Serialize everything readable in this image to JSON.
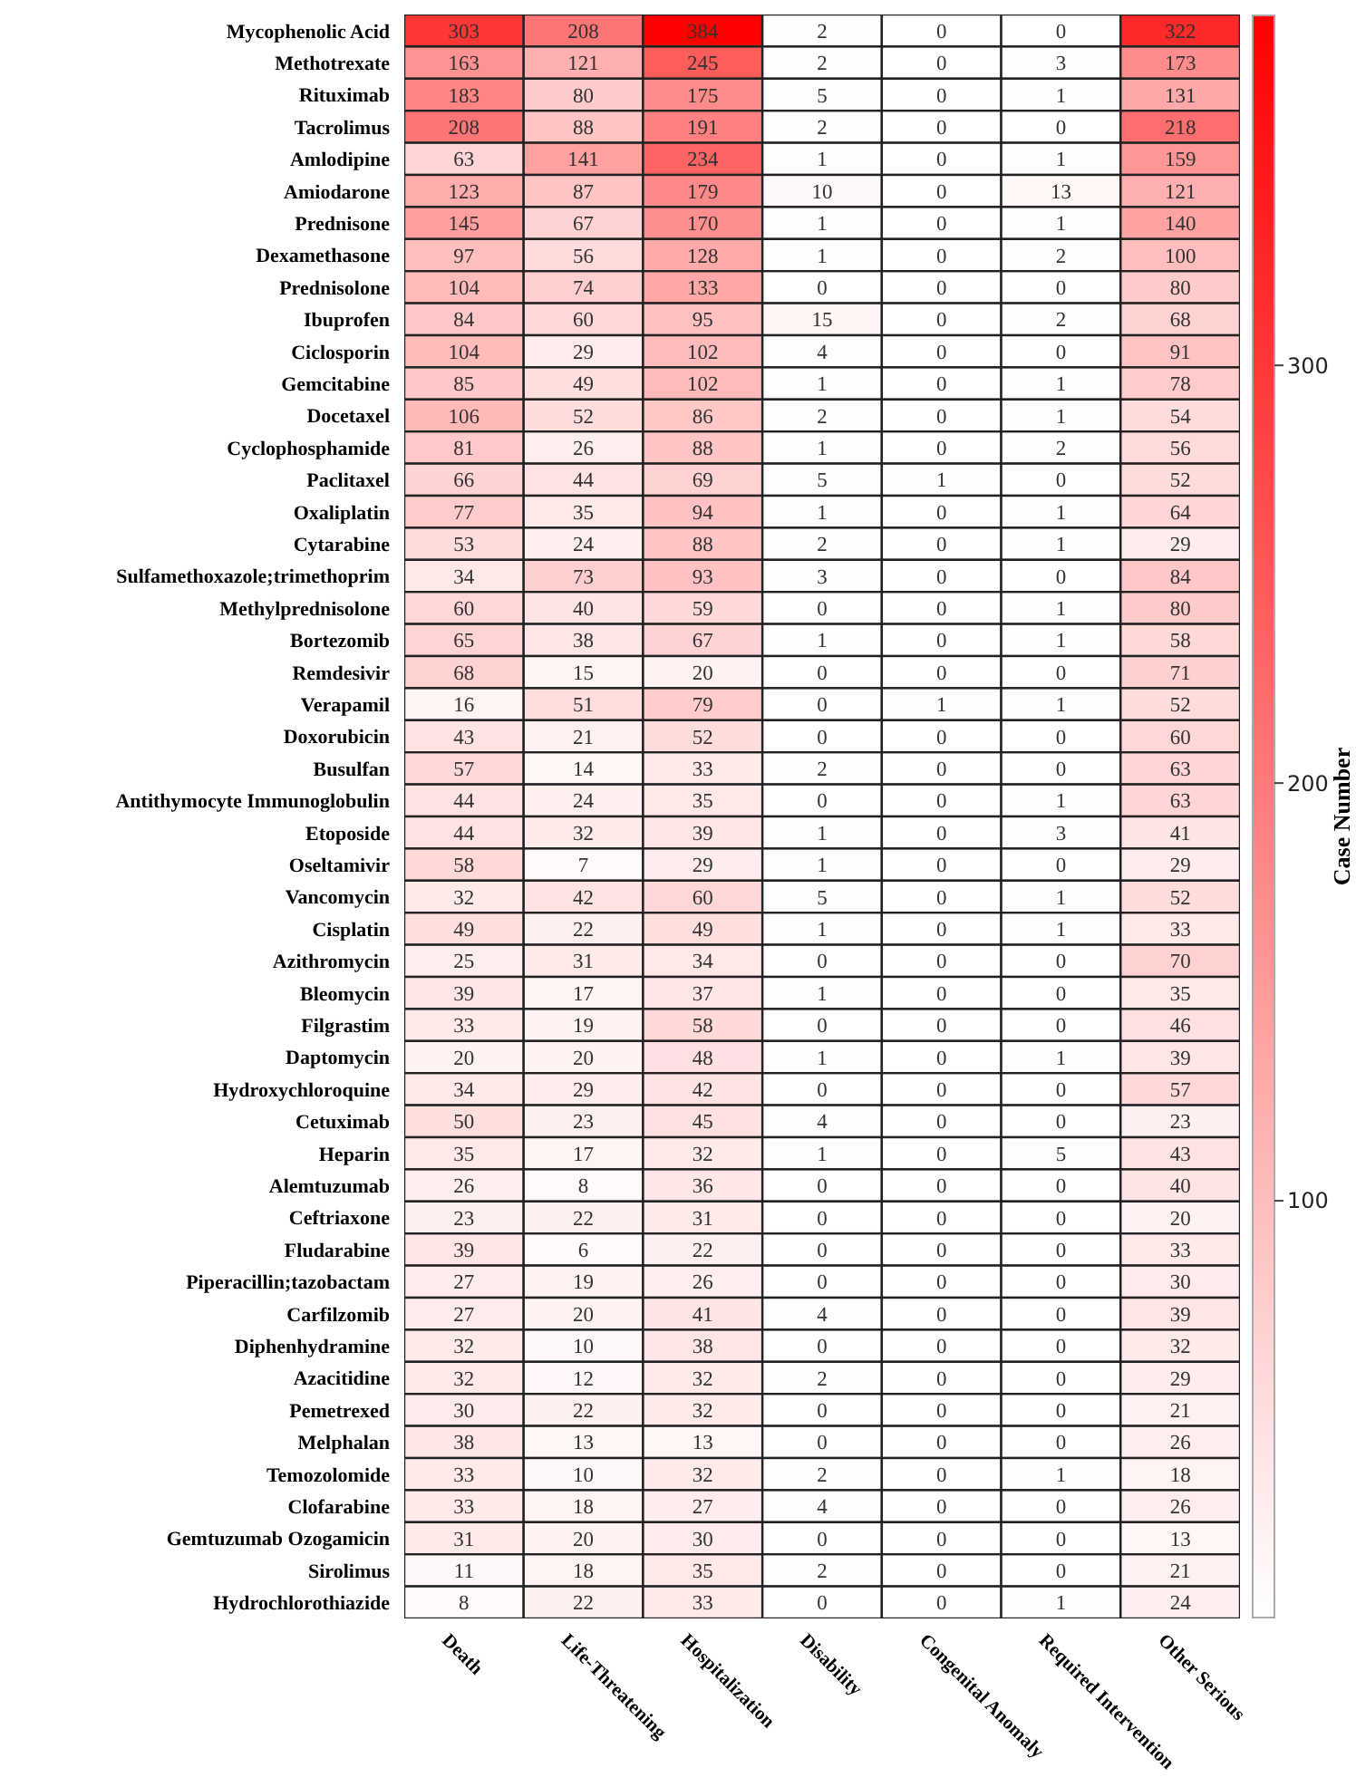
{
  "chart_data": {
    "type": "heatmap",
    "clabel": "Case Number",
    "clim": [
      0,
      384
    ],
    "cticks": [
      100,
      200,
      300
    ],
    "data_labels": true,
    "categories": [
      "Death",
      "Life-Threatening",
      "Hospitalization",
      "Disability",
      "Congenital Anomaly",
      "Required Intervention",
      "Other Serious"
    ],
    "y_categories": [
      "Mycophenolic Acid",
      "Methotrexate",
      "Rituximab",
      "Tacrolimus",
      "Amlodipine",
      "Amiodarone",
      "Prednisone",
      "Dexamethasone",
      "Prednisolone",
      "Ibuprofen",
      "Ciclosporin",
      "Gemcitabine",
      "Docetaxel",
      "Cyclophosphamide",
      "Paclitaxel",
      "Oxaliplatin",
      "Cytarabine",
      "Sulfamethoxazole;trimethoprim",
      "Methylprednisolone",
      "Bortezomib",
      "Remdesivir",
      "Verapamil",
      "Doxorubicin",
      "Busulfan",
      "Antithymocyte Immunoglobulin",
      "Etoposide",
      "Oseltamivir",
      "Vancomycin",
      "Cisplatin",
      "Azithromycin",
      "Bleomycin",
      "Filgrastim",
      "Daptomycin",
      "Hydroxychloroquine",
      "Cetuximab",
      "Heparin",
      "Alemtuzumab",
      "Ceftriaxone",
      "Fludarabine",
      "Piperacillin;tazobactam",
      "Carfilzomib",
      "Diphenhydramine",
      "Azacitidine",
      "Pemetrexed",
      "Melphalan",
      "Temozolomide",
      "Clofarabine",
      "Gemtuzumab Ozogamicin",
      "Sirolimus",
      "Hydrochlorothiazide"
    ],
    "cells": [
      [
        303,
        208,
        384,
        2,
        0,
        0,
        322
      ],
      [
        163,
        121,
        245,
        2,
        0,
        3,
        173
      ],
      [
        183,
        80,
        175,
        5,
        0,
        1,
        131
      ],
      [
        208,
        88,
        191,
        2,
        0,
        0,
        218
      ],
      [
        63,
        141,
        234,
        1,
        0,
        1,
        159
      ],
      [
        123,
        87,
        179,
        10,
        0,
        13,
        121
      ],
      [
        145,
        67,
        170,
        1,
        0,
        1,
        140
      ],
      [
        97,
        56,
        128,
        1,
        0,
        2,
        100
      ],
      [
        104,
        74,
        133,
        0,
        0,
        0,
        80
      ],
      [
        84,
        60,
        95,
        15,
        0,
        2,
        68
      ],
      [
        104,
        29,
        102,
        4,
        0,
        0,
        91
      ],
      [
        85,
        49,
        102,
        1,
        0,
        1,
        78
      ],
      [
        106,
        52,
        86,
        2,
        0,
        1,
        54
      ],
      [
        81,
        26,
        88,
        1,
        0,
        2,
        56
      ],
      [
        66,
        44,
        69,
        5,
        1,
        0,
        52
      ],
      [
        77,
        35,
        94,
        1,
        0,
        1,
        64
      ],
      [
        53,
        24,
        88,
        2,
        0,
        1,
        29
      ],
      [
        34,
        73,
        93,
        3,
        0,
        0,
        84
      ],
      [
        60,
        40,
        59,
        0,
        0,
        1,
        80
      ],
      [
        65,
        38,
        67,
        1,
        0,
        1,
        58
      ],
      [
        68,
        15,
        20,
        0,
        0,
        0,
        71
      ],
      [
        16,
        51,
        79,
        0,
        1,
        1,
        52
      ],
      [
        43,
        21,
        52,
        0,
        0,
        0,
        60
      ],
      [
        57,
        14,
        33,
        2,
        0,
        0,
        63
      ],
      [
        44,
        24,
        35,
        0,
        0,
        1,
        63
      ],
      [
        44,
        32,
        39,
        1,
        0,
        3,
        41
      ],
      [
        58,
        7,
        29,
        1,
        0,
        0,
        29
      ],
      [
        32,
        42,
        60,
        5,
        0,
        1,
        52
      ],
      [
        49,
        22,
        49,
        1,
        0,
        1,
        33
      ],
      [
        25,
        31,
        34,
        0,
        0,
        0,
        70
      ],
      [
        39,
        17,
        37,
        1,
        0,
        0,
        35
      ],
      [
        33,
        19,
        58,
        0,
        0,
        0,
        46
      ],
      [
        20,
        20,
        48,
        1,
        0,
        1,
        39
      ],
      [
        34,
        29,
        42,
        0,
        0,
        0,
        57
      ],
      [
        50,
        23,
        45,
        4,
        0,
        0,
        23
      ],
      [
        35,
        17,
        32,
        1,
        0,
        5,
        43
      ],
      [
        26,
        8,
        36,
        0,
        0,
        0,
        40
      ],
      [
        23,
        22,
        31,
        0,
        0,
        0,
        20
      ],
      [
        39,
        6,
        22,
        0,
        0,
        0,
        33
      ],
      [
        27,
        19,
        26,
        0,
        0,
        0,
        30
      ],
      [
        27,
        20,
        41,
        4,
        0,
        0,
        39
      ],
      [
        32,
        10,
        38,
        0,
        0,
        0,
        32
      ],
      [
        32,
        12,
        32,
        2,
        0,
        0,
        29
      ],
      [
        30,
        22,
        32,
        0,
        0,
        0,
        21
      ],
      [
        38,
        13,
        13,
        0,
        0,
        0,
        26
      ],
      [
        33,
        10,
        32,
        2,
        0,
        1,
        18
      ],
      [
        33,
        18,
        27,
        4,
        0,
        0,
        26
      ],
      [
        31,
        20,
        30,
        0,
        0,
        0,
        13
      ],
      [
        11,
        18,
        35,
        2,
        0,
        0,
        21
      ],
      [
        8,
        22,
        33,
        0,
        0,
        1,
        24
      ]
    ]
  }
}
